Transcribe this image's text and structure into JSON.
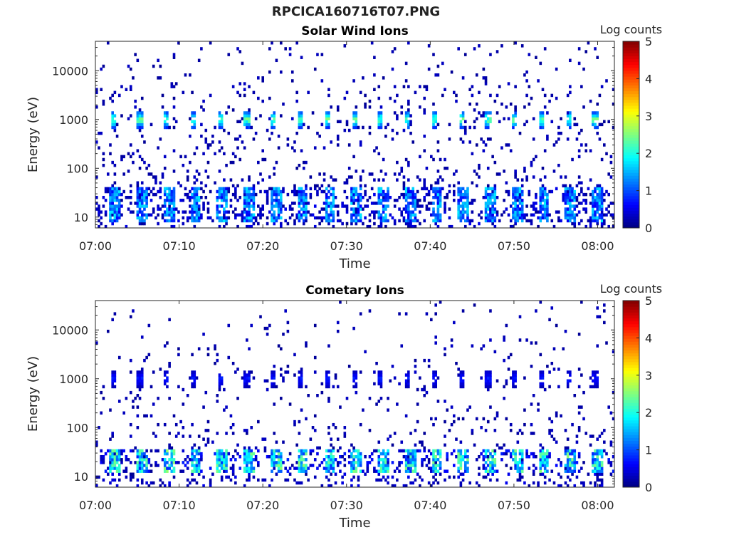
{
  "title": "RPCICA160716T07.PNG",
  "chart_data": [
    {
      "type": "heatmap",
      "title": "Solar Wind Ions",
      "xlabel": "Time",
      "ylabel": "Energy (eV)",
      "x_ticks": [
        "07:00",
        "07:10",
        "07:20",
        "07:30",
        "07:40",
        "07:50",
        "08:00"
      ],
      "y_ticks": [
        "10",
        "100",
        "1000",
        "10000"
      ],
      "xlim": [
        "07:00",
        "08:02"
      ],
      "ylim": [
        6,
        40000
      ],
      "y_scale": "log",
      "colorbar": {
        "label": "Log counts",
        "ticks": [
          "0",
          "1",
          "2",
          "3",
          "4",
          "5"
        ],
        "range": [
          0,
          5
        ],
        "colormap": "jet"
      },
      "features": {
        "beam_energy_ev": 1000,
        "beam_peak_log_counts": 2.5,
        "beam_period_min": 3.2,
        "low_energy_band_ev": [
          8,
          40
        ],
        "low_energy_peak_log_counts": 1.8,
        "background_log_counts": 0.3
      }
    },
    {
      "type": "heatmap",
      "title": "Cometary Ions",
      "xlabel": "Time",
      "ylabel": "Energy (eV)",
      "x_ticks": [
        "07:00",
        "07:10",
        "07:20",
        "07:30",
        "07:40",
        "07:50",
        "08:00"
      ],
      "y_ticks": [
        "10",
        "100",
        "1000",
        "10000"
      ],
      "xlim": [
        "07:00",
        "08:02"
      ],
      "ylim": [
        6,
        40000
      ],
      "y_scale": "log",
      "colorbar": {
        "label": "Log counts",
        "ticks": [
          "0",
          "1",
          "2",
          "3",
          "4",
          "5"
        ],
        "range": [
          0,
          5
        ],
        "colormap": "jet"
      },
      "features": {
        "beam_energy_ev": 1000,
        "beam_peak_log_counts": 0.8,
        "beam_period_min": 3.2,
        "low_energy_band_ev": [
          12,
          35
        ],
        "low_energy_peak_log_counts": 2.6,
        "background_log_counts": 0.2
      }
    }
  ]
}
